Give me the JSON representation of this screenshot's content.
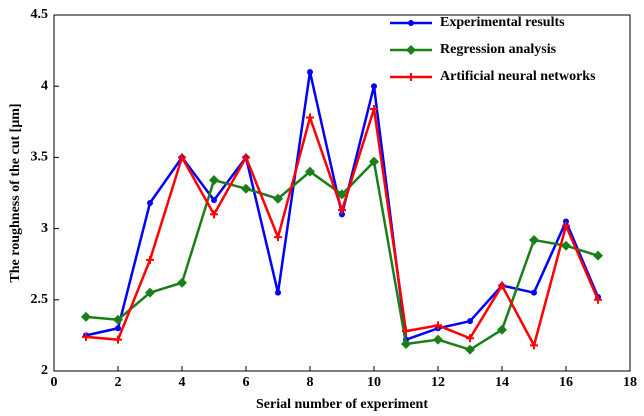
{
  "chart_data": {
    "type": "line",
    "x_label": "Serial number of experiment",
    "y_label": "The roughness of the cut [μm]",
    "x": [
      1,
      2,
      3,
      4,
      5,
      6,
      7,
      8,
      9,
      10,
      11,
      12,
      13,
      14,
      15,
      16,
      17
    ],
    "series": [
      {
        "name": "Experimental results",
        "color": "#0000ff",
        "marker": "circle",
        "values": [
          2.25,
          2.3,
          3.18,
          3.5,
          3.2,
          3.5,
          2.55,
          4.1,
          3.1,
          4.0,
          2.22,
          2.3,
          2.35,
          2.6,
          2.55,
          3.05,
          2.52
        ]
      },
      {
        "name": "Regression analysis",
        "color": "#1a7f1a",
        "marker": "diamond",
        "values": [
          2.38,
          2.36,
          2.55,
          2.62,
          3.34,
          3.28,
          3.21,
          3.4,
          3.24,
          3.47,
          2.19,
          2.22,
          2.15,
          2.29,
          2.92,
          2.88,
          2.81
        ]
      },
      {
        "name": "Artificial neural networks",
        "color": "#ff0000",
        "marker": "plus",
        "values": [
          2.24,
          2.22,
          2.78,
          3.5,
          3.1,
          3.5,
          2.94,
          3.78,
          3.13,
          3.84,
          2.28,
          2.32,
          2.23,
          2.6,
          2.18,
          3.02,
          2.5
        ]
      }
    ],
    "xlim": [
      0,
      18
    ],
    "xticks": [
      0,
      2,
      4,
      6,
      8,
      10,
      12,
      14,
      16,
      18
    ],
    "ylim": [
      2,
      4.5
    ],
    "yticks": [
      2,
      2.5,
      3,
      3.5,
      4,
      4.5
    ],
    "grid": false,
    "legend": "top-right"
  }
}
